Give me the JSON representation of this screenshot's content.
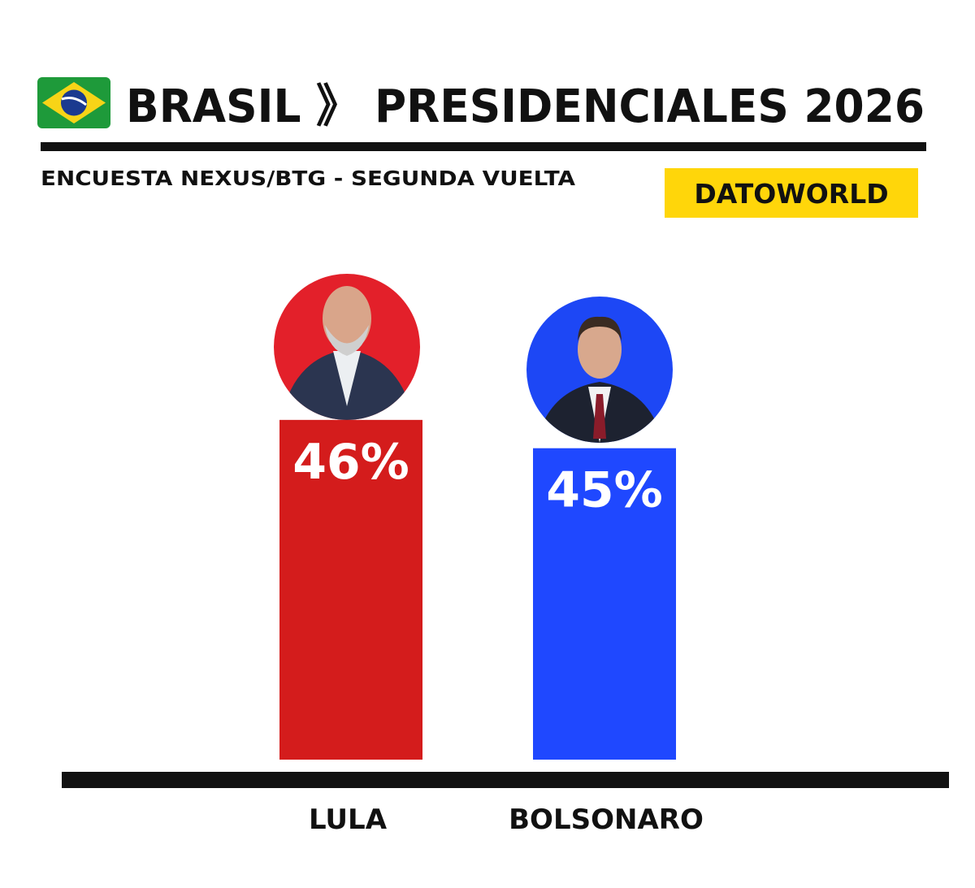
{
  "chart_data": {
    "type": "bar",
    "title": "BRASIL 》 PRESIDENCIALES 2026",
    "subtitle": "ENCUESTA NEXUS/BTG - SEGUNDA VUELTA",
    "source": "DATOWORLD",
    "categories": [
      "LULA",
      "BOLSONARO"
    ],
    "values": [
      46,
      45
    ],
    "value_labels": [
      "46%",
      "45%"
    ],
    "colors": [
      "#d41c1c",
      "#1f48ff"
    ],
    "ylim": [
      34,
      47
    ]
  }
}
